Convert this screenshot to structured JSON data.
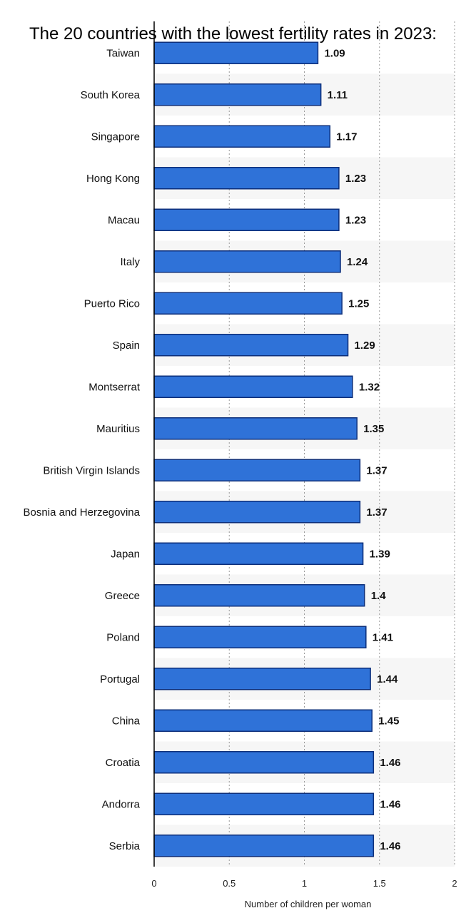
{
  "chart_data": {
    "type": "bar",
    "orientation": "horizontal",
    "title": "The 20 countries with the lowest fertility rates in 2023:",
    "xlabel": "Number of children per woman",
    "ylabel": "",
    "xlim": [
      0,
      2
    ],
    "x_ticks": [
      "0",
      "0.5",
      "1",
      "1.5",
      "2"
    ],
    "grid": "vertical-dotted",
    "categories": [
      "Taiwan",
      "South Korea",
      "Singapore",
      "Hong Kong",
      "Macau",
      "Italy",
      "Puerto Rico",
      "Spain",
      "Montserrat",
      "Mauritius",
      "British Virgin Islands",
      "Bosnia and Herzegovina",
      "Japan",
      "Greece",
      "Poland",
      "Portugal",
      "China",
      "Croatia",
      "Andorra",
      "Serbia"
    ],
    "values": [
      1.09,
      1.11,
      1.17,
      1.23,
      1.23,
      1.24,
      1.25,
      1.29,
      1.32,
      1.35,
      1.37,
      1.37,
      1.39,
      1.4,
      1.41,
      1.44,
      1.45,
      1.46,
      1.46,
      1.46
    ],
    "value_labels": [
      "1.09",
      "1.11",
      "1.17",
      "1.23",
      "1.23",
      "1.24",
      "1.25",
      "1.29",
      "1.32",
      "1.35",
      "1.37",
      "1.37",
      "1.39",
      "1.4",
      "1.41",
      "1.44",
      "1.45",
      "1.46",
      "1.46",
      "1.46"
    ],
    "colors": {
      "bar": "#2f72d8",
      "bar_edge": "#0d2f7a",
      "stripe": "#f6f6f6"
    }
  }
}
